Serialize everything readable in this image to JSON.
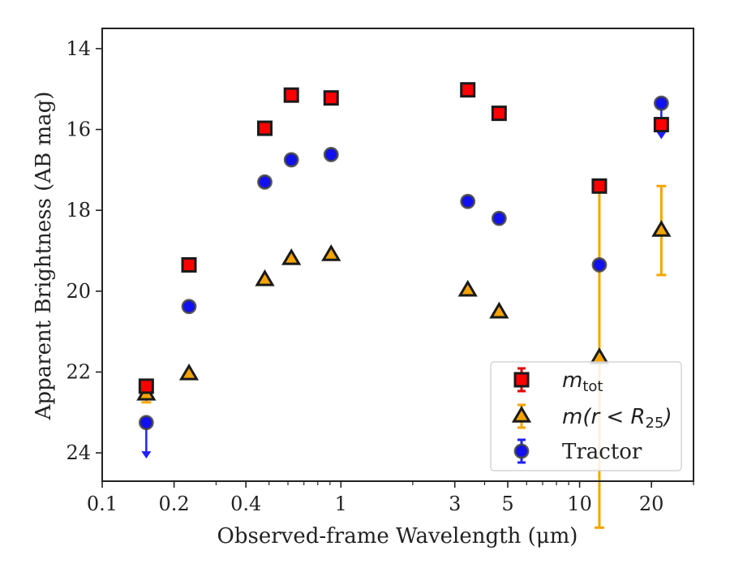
{
  "chart_data": {
    "type": "scatter",
    "xlabel": "Observed-frame Wavelength (μm)",
    "ylabel": "Apparent Brightness (AB mag)",
    "x_scale": "log",
    "xlim": [
      0.1,
      30
    ],
    "ylim": [
      24.7,
      13.5
    ],
    "y_inverted": true,
    "x_ticks": [
      0.1,
      0.2,
      0.4,
      1,
      3,
      5,
      10,
      20
    ],
    "x_tick_labels": [
      "0.1",
      "0.2",
      "0.4",
      "1",
      "3",
      "5",
      "10",
      "20"
    ],
    "y_ticks": [
      14,
      16,
      18,
      20,
      22,
      24
    ],
    "y_tick_labels": [
      "14",
      "16",
      "18",
      "20",
      "22",
      "24"
    ],
    "legend_position": "lower-right",
    "series": [
      {
        "key": "mtot",
        "name_main": "m",
        "name_sub": "tot",
        "marker": "square",
        "color": "#ff0000",
        "edge_color": "#1a1a1a",
        "errorbar_color": "#e00000",
        "points": [
          {
            "x": 0.153,
            "y": 22.35
          },
          {
            "x": 0.231,
            "y": 19.35
          },
          {
            "x": 0.48,
            "y": 15.97
          },
          {
            "x": 0.62,
            "y": 15.15
          },
          {
            "x": 0.91,
            "y": 15.22
          },
          {
            "x": 3.4,
            "y": 15.02
          },
          {
            "x": 4.6,
            "y": 15.6
          },
          {
            "x": 12.1,
            "y": 17.4
          },
          {
            "x": 22.0,
            "y": 15.88
          }
        ]
      },
      {
        "key": "mr25",
        "name_main": "m(r < R",
        "name_sub": "25",
        "name_end": ")",
        "marker": "triangle",
        "color": "#f5a400",
        "edge_color": "#1a1a1a",
        "errorbar_color": "#f5a400",
        "points": [
          {
            "x": 0.153,
            "y": 22.55,
            "yerr_lo": 0.2,
            "yerr_hi": 0.2
          },
          {
            "x": 0.231,
            "y": 22.05
          },
          {
            "x": 0.48,
            "y": 19.72
          },
          {
            "x": 0.62,
            "y": 19.2
          },
          {
            "x": 0.91,
            "y": 19.1
          },
          {
            "x": 3.4,
            "y": 19.98
          },
          {
            "x": 4.6,
            "y": 20.52
          },
          {
            "x": 12.1,
            "y": 21.65,
            "yerr_lo": 4.2,
            "yerr_hi": 4.2
          },
          {
            "x": 22.0,
            "y": 18.5,
            "yerr_lo": 1.1,
            "yerr_hi": 1.1
          }
        ]
      },
      {
        "key": "tractor",
        "name": "Tractor",
        "marker": "circle",
        "color": "#1010f0",
        "edge_color": "#444444",
        "errorbar_color": "#2020ff",
        "points": [
          {
            "x": 0.153,
            "y": 23.25,
            "upper_limit": true
          },
          {
            "x": 0.231,
            "y": 20.38
          },
          {
            "x": 0.48,
            "y": 17.3
          },
          {
            "x": 0.62,
            "y": 16.75
          },
          {
            "x": 0.91,
            "y": 16.62
          },
          {
            "x": 3.4,
            "y": 17.78
          },
          {
            "x": 4.6,
            "y": 18.2
          },
          {
            "x": 12.1,
            "y": 19.35
          },
          {
            "x": 22.0,
            "y": 15.35,
            "upper_limit": true
          }
        ]
      }
    ]
  }
}
